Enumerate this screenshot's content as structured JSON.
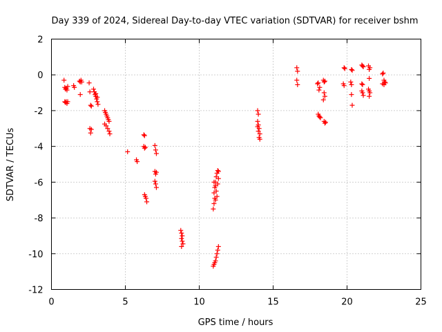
{
  "chart_data": {
    "type": "scatter",
    "title": "Day 339 of 2024, Sidereal Day-to-day VTEC variation (SDTVAR) for receiver bshm",
    "xlabel": "GPS time / hours",
    "ylabel": "SDTVAR / TECUs",
    "xlim": [
      0,
      25
    ],
    "ylim": [
      -12,
      2
    ],
    "xticks": [
      0,
      5,
      10,
      15,
      20,
      25
    ],
    "yticks": [
      -12,
      -10,
      -8,
      -6,
      -4,
      -2,
      0,
      2
    ],
    "grid": true,
    "marker": "plus",
    "color": "#ff0000",
    "series": [
      {
        "name": "SDTVAR",
        "points": [
          [
            0.85,
            -0.3
          ],
          [
            0.9,
            -0.7
          ],
          [
            0.95,
            -0.8
          ],
          [
            1.0,
            -0.75
          ],
          [
            1.05,
            -0.85
          ],
          [
            1.1,
            -0.65
          ],
          [
            0.9,
            -1.5
          ],
          [
            0.95,
            -1.55
          ],
          [
            1.0,
            -1.5
          ],
          [
            1.05,
            -1.6
          ],
          [
            1.1,
            -1.5
          ],
          [
            1.5,
            -0.6
          ],
          [
            1.55,
            -0.7
          ],
          [
            1.9,
            -0.35
          ],
          [
            1.95,
            -0.4
          ],
          [
            2.0,
            -0.3
          ],
          [
            2.05,
            -0.4
          ],
          [
            1.95,
            -1.1
          ],
          [
            2.55,
            -0.45
          ],
          [
            2.6,
            -0.95
          ],
          [
            2.65,
            -1.7
          ],
          [
            2.7,
            -1.75
          ],
          [
            2.6,
            -3.0
          ],
          [
            2.65,
            -3.25
          ],
          [
            2.7,
            -3.05
          ],
          [
            2.85,
            -0.8
          ],
          [
            2.9,
            -0.95
          ],
          [
            2.95,
            -1.1
          ],
          [
            3.0,
            -1.2
          ],
          [
            3.05,
            -1.35
          ],
          [
            3.1,
            -1.5
          ],
          [
            3.15,
            -1.65
          ],
          [
            3.0,
            -1.05
          ],
          [
            3.1,
            -1.25
          ],
          [
            3.6,
            -2.0
          ],
          [
            3.65,
            -2.1
          ],
          [
            3.7,
            -2.2
          ],
          [
            3.75,
            -2.3
          ],
          [
            3.8,
            -2.4
          ],
          [
            3.85,
            -2.5
          ],
          [
            3.9,
            -2.6
          ],
          [
            3.6,
            -2.75
          ],
          [
            3.7,
            -2.85
          ],
          [
            3.8,
            -3.0
          ],
          [
            3.9,
            -3.15
          ],
          [
            3.95,
            -3.3
          ],
          [
            5.15,
            -4.3
          ],
          [
            5.75,
            -4.75
          ],
          [
            5.8,
            -4.85
          ],
          [
            6.25,
            -3.35
          ],
          [
            6.3,
            -3.4
          ],
          [
            6.25,
            -4.0
          ],
          [
            6.3,
            -4.1
          ],
          [
            6.35,
            -4.05
          ],
          [
            6.3,
            -6.7
          ],
          [
            6.35,
            -6.8
          ],
          [
            6.4,
            -6.9
          ],
          [
            6.45,
            -7.1
          ],
          [
            7.0,
            -3.95
          ],
          [
            7.05,
            -4.2
          ],
          [
            7.1,
            -4.4
          ],
          [
            7.0,
            -5.4
          ],
          [
            7.05,
            -5.55
          ],
          [
            7.1,
            -5.45
          ],
          [
            7.0,
            -5.95
          ],
          [
            7.05,
            -6.1
          ],
          [
            7.1,
            -6.3
          ],
          [
            8.75,
            -8.7
          ],
          [
            8.8,
            -8.85
          ],
          [
            8.85,
            -9.0
          ],
          [
            8.8,
            -9.15
          ],
          [
            8.85,
            -9.3
          ],
          [
            8.9,
            -9.45
          ],
          [
            8.8,
            -9.6
          ],
          [
            10.95,
            -7.5
          ],
          [
            11.0,
            -7.2
          ],
          [
            11.05,
            -6.9
          ],
          [
            11.0,
            -6.6
          ],
          [
            11.05,
            -6.3
          ],
          [
            11.1,
            -6.0
          ],
          [
            11.15,
            -5.7
          ],
          [
            11.2,
            -5.5
          ],
          [
            11.25,
            -5.35
          ],
          [
            11.3,
            -5.4
          ],
          [
            11.0,
            -6.0
          ],
          [
            11.1,
            -6.2
          ],
          [
            11.15,
            -6.5
          ],
          [
            11.2,
            -6.8
          ],
          [
            11.25,
            -6.1
          ],
          [
            11.3,
            -5.8
          ],
          [
            11.1,
            -7.0
          ],
          [
            10.95,
            -10.7
          ],
          [
            11.0,
            -10.6
          ],
          [
            11.05,
            -10.5
          ],
          [
            11.1,
            -10.4
          ],
          [
            11.15,
            -10.2
          ],
          [
            11.2,
            -10.0
          ],
          [
            11.25,
            -9.8
          ],
          [
            11.3,
            -9.6
          ],
          [
            13.95,
            -2.0
          ],
          [
            14.0,
            -2.2
          ],
          [
            13.95,
            -2.6
          ],
          [
            14.0,
            -2.8
          ],
          [
            14.05,
            -3.0
          ],
          [
            14.0,
            -3.15
          ],
          [
            14.1,
            -3.3
          ],
          [
            14.05,
            -3.5
          ],
          [
            14.1,
            -3.6
          ],
          [
            13.95,
            -2.9
          ],
          [
            16.6,
            0.4
          ],
          [
            16.65,
            0.2
          ],
          [
            16.6,
            -0.3
          ],
          [
            16.65,
            -0.55
          ],
          [
            18.0,
            -0.5
          ],
          [
            18.05,
            -0.45
          ],
          [
            18.1,
            -0.85
          ],
          [
            18.15,
            -0.7
          ],
          [
            18.05,
            -2.2
          ],
          [
            18.1,
            -2.3
          ],
          [
            18.15,
            -2.35
          ],
          [
            18.2,
            -2.4
          ],
          [
            18.4,
            -0.3
          ],
          [
            18.45,
            -0.4
          ],
          [
            18.5,
            -0.35
          ],
          [
            18.45,
            -1.0
          ],
          [
            18.5,
            -1.2
          ],
          [
            18.4,
            -1.4
          ],
          [
            18.45,
            -2.6
          ],
          [
            18.5,
            -2.7
          ],
          [
            18.55,
            -2.65
          ],
          [
            19.8,
            0.4
          ],
          [
            19.85,
            0.35
          ],
          [
            19.75,
            -0.5
          ],
          [
            19.8,
            -0.6
          ],
          [
            20.3,
            0.3
          ],
          [
            20.35,
            0.25
          ],
          [
            20.25,
            -0.4
          ],
          [
            20.3,
            -0.55
          ],
          [
            20.3,
            -1.1
          ],
          [
            20.35,
            -1.7
          ],
          [
            21.0,
            0.55
          ],
          [
            21.05,
            0.5
          ],
          [
            21.1,
            0.45
          ],
          [
            21.0,
            -0.5
          ],
          [
            21.05,
            -0.55
          ],
          [
            21.0,
            -0.9
          ],
          [
            21.05,
            -1.0
          ],
          [
            21.1,
            -1.15
          ],
          [
            21.45,
            0.5
          ],
          [
            21.5,
            0.3
          ],
          [
            21.55,
            0.4
          ],
          [
            21.5,
            -0.2
          ],
          [
            21.45,
            -0.8
          ],
          [
            21.5,
            -0.9
          ],
          [
            21.55,
            -1.0
          ],
          [
            21.5,
            -1.2
          ],
          [
            22.4,
            0.05
          ],
          [
            22.45,
            0.1
          ],
          [
            22.5,
            -0.3
          ],
          [
            22.55,
            -0.4
          ],
          [
            22.4,
            -0.5
          ],
          [
            22.5,
            -0.55
          ],
          [
            22.6,
            -0.45
          ]
        ]
      }
    ]
  }
}
